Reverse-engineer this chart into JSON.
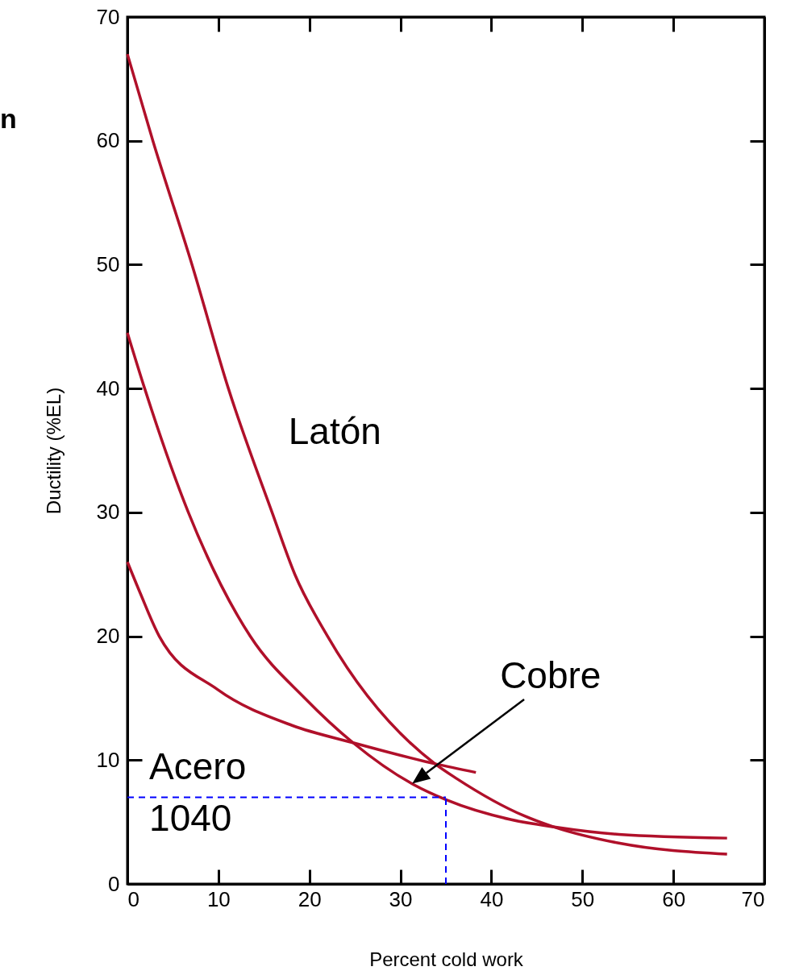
{
  "chart_data": {
    "type": "line",
    "xlabel": "Percent cold work",
    "ylabel": "Ductility (%EL)",
    "xlim": [
      0,
      70
    ],
    "xticks": [
      0,
      10,
      20,
      30,
      40,
      50,
      60,
      70
    ],
    "ylim": [
      0,
      70
    ],
    "yticks": [
      0,
      10,
      20,
      30,
      40,
      50,
      60,
      70
    ],
    "line_style": "solid",
    "series": [
      {
        "name": "Latón",
        "color": "#b0102a",
        "x": [
          0,
          2.8,
          7.1,
          11.1,
          15.9,
          18.4,
          22,
          33.8,
          36.2,
          43.6,
          46.9,
          54,
          65.9
        ],
        "values": [
          67,
          60,
          50,
          40,
          30,
          25,
          20,
          9.7,
          8.5,
          5.5,
          4.6,
          3.3,
          2.4
        ]
      },
      {
        "color": "#b0102a",
        "x": [
          0,
          1.9,
          6.7,
          13.5,
          19.5,
          24.8,
          31.5,
          35,
          42.1,
          46.9,
          54,
          65.9
        ],
        "values": [
          44.5,
          40,
          30,
          20,
          15,
          11.4,
          8,
          6.8,
          5.2,
          4.6,
          4,
          3.7
        ]
      },
      {
        "name": "Acero 1040",
        "color": "#b0102a",
        "x": [
          0,
          1.4,
          3.5,
          9.9,
          18.1,
          24.8,
          33.8,
          38.3
        ],
        "values": [
          26,
          23.5,
          20,
          15.7,
          12.8,
          11.4,
          9.7,
          9
        ]
      }
    ],
    "ref_lines": [
      {
        "axis": "y",
        "value": 7,
        "color": "#0000ff",
        "line_style": "dashed"
      },
      {
        "axis": "x",
        "value": 35,
        "color": "#0000ff",
        "line_style": "dashed"
      }
    ],
    "annotations": [
      "n",
      "Cobre"
    ]
  }
}
